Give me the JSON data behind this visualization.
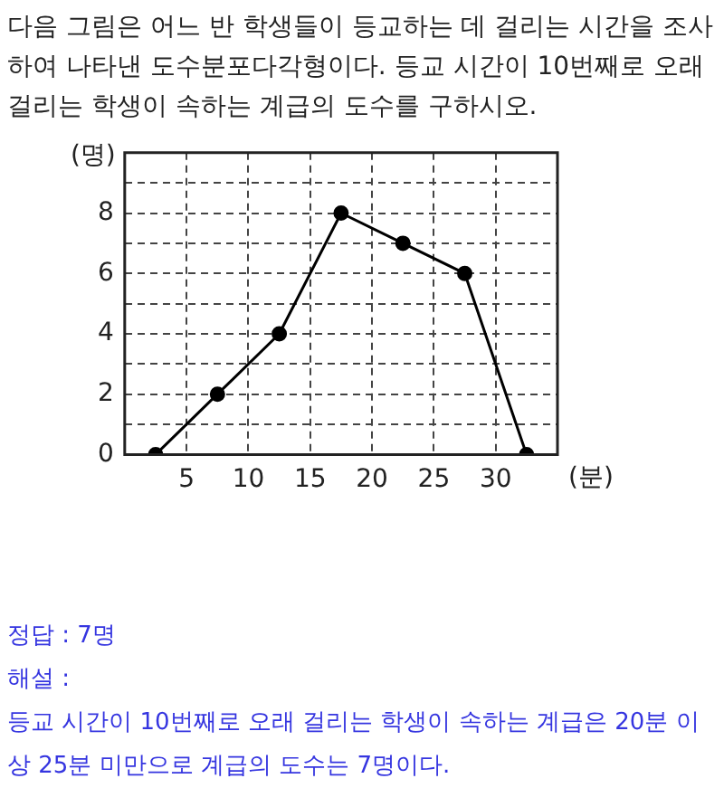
{
  "chart_data": {
    "type": "line",
    "title": "다음 그림은 어느 반 학생들이 등교하는 데 걸리는 시간을 조사하여 나타낸 도수분포다각형이다. 등교 시간이 10번째로 오래 걸리는 학생이 속하는 계급의 도수를 구하시오.",
    "xlabel": "(분)",
    "ylabel": "(명)",
    "x": [
      2.5,
      7.5,
      12.5,
      17.5,
      22.5,
      27.5,
      32.5
    ],
    "series": [
      {
        "color": "#000000",
        "values": [
          0,
          2,
          4,
          8,
          7,
          6,
          0
        ]
      }
    ],
    "xlim": [
      0,
      35
    ],
    "xticks": [
      5,
      10,
      15,
      20,
      25,
      30
    ],
    "ylim": [
      0,
      10
    ],
    "yticks": [
      0,
      {
        "value": 1,
        "label": null
      },
      2,
      {
        "value": 3,
        "label": null
      },
      4,
      {
        "value": 5,
        "label": null
      },
      6,
      {
        "value": 7,
        "label": null
      },
      8,
      {
        "value": 9,
        "label": null
      },
      {
        "value": 10,
        "label": null
      }
    ],
    "grid": true,
    "legend": false,
    "marker": "circle",
    "line_style": "solid",
    "annotations": [
      "정답 : 7명",
      "해설 :",
      "등교 시간이 10번째로 오래 걸리는 학생이 속하는 계급은 20분 이상 25분 미만으로 계급의 도수는 7명이다."
    ]
  }
}
